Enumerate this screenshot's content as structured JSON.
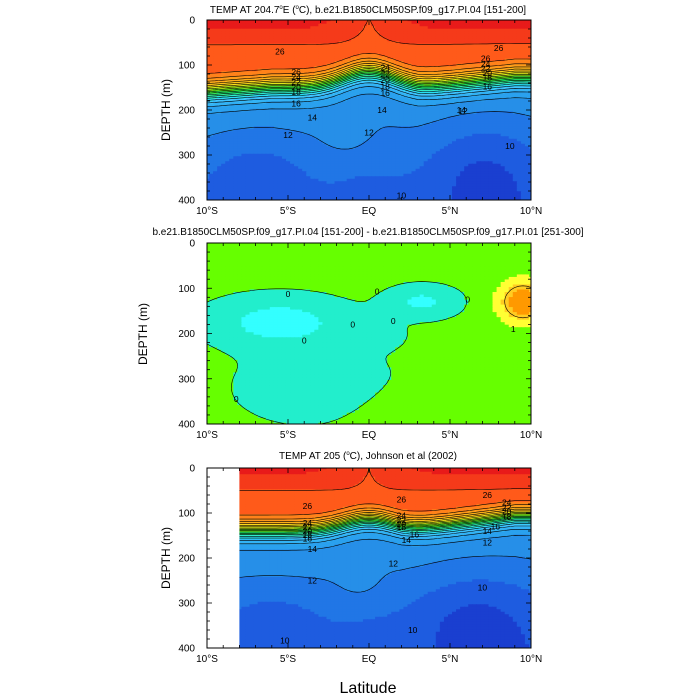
{
  "chart_data": [
    {
      "type": "contour",
      "id": "model",
      "title": "TEMP AT 204.7°E (°C), b.e21.B1850CLM50SP.f09_g17.PI.04 [151-200]",
      "title_parts": [
        "TEMP AT 204.7",
        "o",
        "E (",
        "o",
        "C), b.e21.B1850CLM50SP.f09_g17.PI.04 [151-200]"
      ],
      "xlabel": "",
      "ylabel": "DEPTH (m)",
      "x_tick_labels": [
        "10°S",
        "5°S",
        "EQ",
        "5°N",
        "10°N"
      ],
      "y_tick_labels": [
        "0",
        "100",
        "200",
        "300",
        "400"
      ],
      "x_range": [
        -10,
        10
      ],
      "y_range": [
        0,
        400
      ],
      "data_x_range": [
        -10,
        10
      ],
      "contour_levels": [
        10,
        11,
        12,
        13,
        14,
        15,
        16,
        17,
        18,
        19,
        20,
        21,
        22,
        23,
        24,
        25,
        26,
        27,
        28
      ],
      "labels": [
        {
          "text": "26",
          "x": -5.5,
          "y": 70
        },
        {
          "text": "26",
          "x": 8.0,
          "y": 62
        },
        {
          "text": "26",
          "x": -4.5,
          "y": 115
        },
        {
          "text": "24",
          "x": -4.5,
          "y": 127
        },
        {
          "text": "22",
          "x": -4.5,
          "y": 138
        },
        {
          "text": "20",
          "x": -4.5,
          "y": 150
        },
        {
          "text": "18",
          "x": -4.5,
          "y": 160
        },
        {
          "text": "16",
          "x": -4.5,
          "y": 185
        },
        {
          "text": "14",
          "x": -3.5,
          "y": 217
        },
        {
          "text": "12",
          "x": -5.0,
          "y": 255
        },
        {
          "text": "24",
          "x": 1.0,
          "y": 105
        },
        {
          "text": "22",
          "x": 1.0,
          "y": 120
        },
        {
          "text": "20",
          "x": 1.0,
          "y": 133
        },
        {
          "text": "18",
          "x": 1.0,
          "y": 148
        },
        {
          "text": "16",
          "x": 1.0,
          "y": 162
        },
        {
          "text": "14",
          "x": 0.8,
          "y": 200
        },
        {
          "text": "12",
          "x": 0.0,
          "y": 250
        },
        {
          "text": "14",
          "x": 5.7,
          "y": 200
        },
        {
          "text": "26",
          "x": 7.2,
          "y": 85
        },
        {
          "text": "24",
          "x": 7.2,
          "y": 98
        },
        {
          "text": "22",
          "x": 7.2,
          "y": 108
        },
        {
          "text": "20",
          "x": 7.3,
          "y": 118
        },
        {
          "text": "18",
          "x": 7.3,
          "y": 128
        },
        {
          "text": "16",
          "x": 7.3,
          "y": 148
        },
        {
          "text": "12",
          "x": 5.8,
          "y": 202
        },
        {
          "text": "10",
          "x": 8.7,
          "y": 280
        },
        {
          "text": "10",
          "x": 2.0,
          "y": 390
        }
      ]
    },
    {
      "type": "contour",
      "id": "diff",
      "title": "b.e21.B1850CLM50SP.f09_g17.PI.04 [151-200] - b.e21.B1850CLM50SP.f09_g17.PI.01 [251-300]",
      "xlabel": "",
      "ylabel": "DEPTH (m)",
      "x_tick_labels": [
        "10°S",
        "5°S",
        "EQ",
        "5°N",
        "10°N"
      ],
      "y_tick_labels": [
        "0",
        "100",
        "200",
        "300",
        "400"
      ],
      "x_range": [
        -10,
        10
      ],
      "y_range": [
        0,
        400
      ],
      "data_x_range": [
        -10,
        10
      ],
      "contour_levels": [
        -1,
        0,
        1
      ],
      "labels": [
        {
          "text": "0",
          "x": -5.0,
          "y": 113
        },
        {
          "text": "0",
          "x": 0.5,
          "y": 107
        },
        {
          "text": "0",
          "x": 6.1,
          "y": 125
        },
        {
          "text": "0",
          "x": -4.0,
          "y": 215
        },
        {
          "text": "0",
          "x": -1.0,
          "y": 180
        },
        {
          "text": "0",
          "x": 1.5,
          "y": 172
        },
        {
          "text": "0",
          "x": -8.2,
          "y": 345
        },
        {
          "text": "1",
          "x": 8.9,
          "y": 190
        }
      ]
    },
    {
      "type": "contour",
      "id": "obs",
      "title": "TEMP AT 205 (°C), Johnson et al (2002)",
      "title_parts": [
        "TEMP AT 205 (",
        "o",
        "C), Johnson et al (2002)"
      ],
      "xlabel": "Latitude",
      "ylabel": "DEPTH (m)",
      "x_tick_labels": [
        "10°S",
        "5°S",
        "EQ",
        "5°N",
        "10°N"
      ],
      "y_tick_labels": [
        "0",
        "100",
        "200",
        "300",
        "400"
      ],
      "x_range": [
        -10,
        10
      ],
      "y_range": [
        0,
        400
      ],
      "data_x_range": [
        -8,
        10
      ],
      "contour_levels": [
        10,
        11,
        12,
        13,
        14,
        15,
        16,
        17,
        18,
        19,
        20,
        21,
        22,
        23,
        24,
        25,
        26,
        27,
        28
      ],
      "labels": [
        {
          "text": "26",
          "x": -3.8,
          "y": 84
        },
        {
          "text": "24",
          "x": -3.8,
          "y": 122
        },
        {
          "text": "22",
          "x": -3.8,
          "y": 131
        },
        {
          "text": "20",
          "x": -3.8,
          "y": 140
        },
        {
          "text": "18",
          "x": -3.8,
          "y": 148
        },
        {
          "text": "16",
          "x": -3.8,
          "y": 157
        },
        {
          "text": "14",
          "x": -3.5,
          "y": 180
        },
        {
          "text": "12",
          "x": -3.5,
          "y": 250
        },
        {
          "text": "26",
          "x": 2.0,
          "y": 70
        },
        {
          "text": "24",
          "x": 2.0,
          "y": 105
        },
        {
          "text": "22",
          "x": 2.0,
          "y": 115
        },
        {
          "text": "20",
          "x": 2.0,
          "y": 124
        },
        {
          "text": "18",
          "x": 2.0,
          "y": 131
        },
        {
          "text": "16",
          "x": 2.8,
          "y": 148
        },
        {
          "text": "14",
          "x": 2.3,
          "y": 160
        },
        {
          "text": "12",
          "x": 1.5,
          "y": 212
        },
        {
          "text": "26",
          "x": 7.3,
          "y": 60
        },
        {
          "text": "24",
          "x": 8.5,
          "y": 77
        },
        {
          "text": "22",
          "x": 8.5,
          "y": 88
        },
        {
          "text": "20",
          "x": 8.5,
          "y": 97
        },
        {
          "text": "18",
          "x": 8.5,
          "y": 108
        },
        {
          "text": "16",
          "x": 7.8,
          "y": 130
        },
        {
          "text": "14",
          "x": 7.3,
          "y": 140
        },
        {
          "text": "12",
          "x": 7.3,
          "y": 165
        },
        {
          "text": "10",
          "x": 7.0,
          "y": 265
        },
        {
          "text": "10",
          "x": 2.7,
          "y": 360
        },
        {
          "text": "10",
          "x": -5.2,
          "y": 383
        }
      ]
    }
  ],
  "colors": {
    "temp_scale": [
      "#1a3fd0",
      "#1e5ce0",
      "#2176e6",
      "#268fe8",
      "#2aa1ee",
      "#33b3f5",
      "#40c4ff",
      "#2ae0f5",
      "#30ecca",
      "#33ef9a",
      "#1ef06a",
      "#38f23d",
      "#66f01a",
      "#a0f01a",
      "#d8f01a",
      "#fce41a",
      "#ffc41a",
      "#ffae1a",
      "#ff9a1a",
      "#ff821a",
      "#ff5a1a",
      "#f53a1a",
      "#e81a1a"
    ],
    "diff_scale": [
      "#33ffff",
      "#22eecc",
      "#66ff00",
      "#ffff33",
      "#ffcc22",
      "#ff9900"
    ]
  }
}
